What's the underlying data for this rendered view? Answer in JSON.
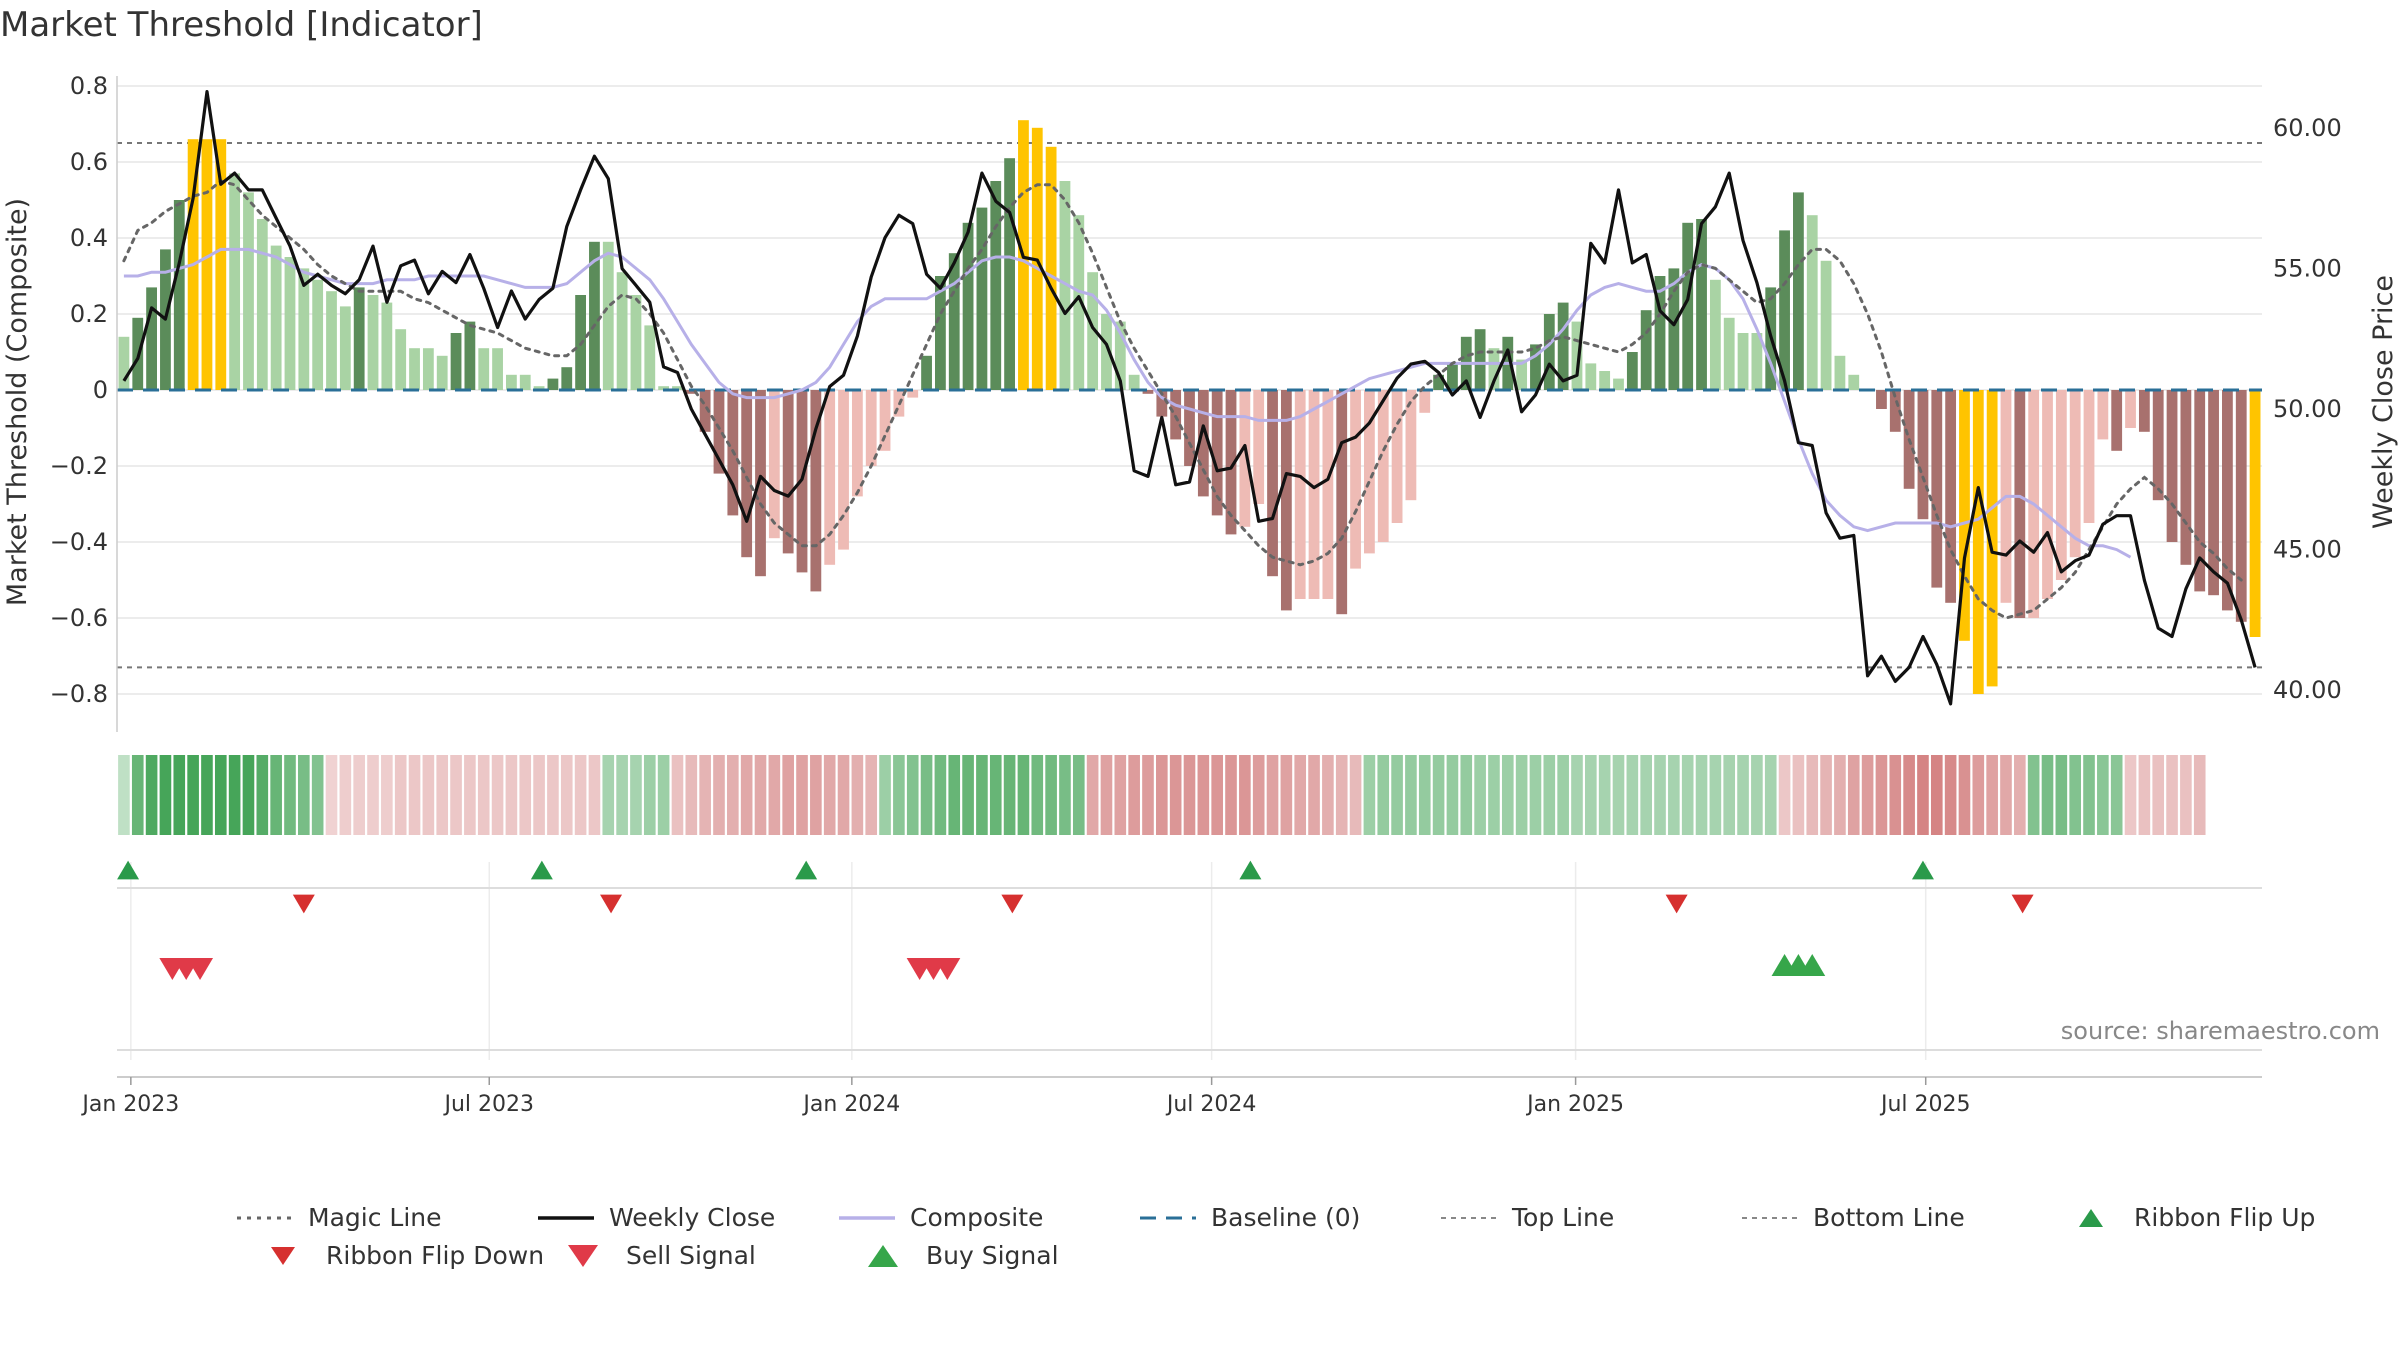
{
  "chart_data": {
    "title": "Market Threshold [Indicator]",
    "type": "bar",
    "y_left": {
      "label": "Market Threshold (Composite)",
      "range": [
        -0.9,
        0.8
      ],
      "ticks": [
        "0.8",
        "0.6",
        "0.4",
        "0.2",
        "0",
        "−0.2",
        "−0.4",
        "−0.6",
        "−0.8"
      ],
      "tick_values": [
        0.8,
        0.6,
        0.4,
        0.2,
        0,
        -0.2,
        -0.4,
        -0.6,
        -0.8
      ]
    },
    "y_right": {
      "label": "Weekly Close Price",
      "range": [
        38.5,
        61.5
      ],
      "ticks": [
        "60.00",
        "55.00",
        "50.00",
        "45.00",
        "40.00"
      ],
      "tick_values": [
        60,
        55,
        50,
        45,
        40
      ]
    },
    "x_axis": {
      "ticks": [
        "Jan 2023",
        "Jul 2023",
        "Jan 2024",
        "Jul 2024",
        "Jan 2025",
        "Jul 2025"
      ],
      "tick_weeks": [
        0.5,
        26.4,
        52.6,
        78.6,
        104.9,
        130.2
      ],
      "weeks": 143
    },
    "grid": true,
    "legend_placement": "bottom",
    "top_line": 0.65,
    "bottom_line": -0.73,
    "composite_bars": [
      0.14,
      0.19,
      0.27,
      0.37,
      0.5,
      0.66,
      0.66,
      0.66,
      0.57,
      0.52,
      0.45,
      0.38,
      0.35,
      0.32,
      0.29,
      0.26,
      0.22,
      0.27,
      0.25,
      0.23,
      0.16,
      0.11,
      0.11,
      0.09,
      0.15,
      0.18,
      0.11,
      0.11,
      0.04,
      0.04,
      0.01,
      0.03,
      0.06,
      0.25,
      0.39,
      0.39,
      0.31,
      0.25,
      0.17,
      0.01,
      0.01,
      -0.01,
      -0.11,
      -0.22,
      -0.33,
      -0.44,
      -0.49,
      -0.39,
      -0.43,
      -0.48,
      -0.53,
      -0.46,
      -0.42,
      -0.28,
      -0.2,
      -0.16,
      -0.07,
      -0.02,
      0.09,
      0.3,
      0.36,
      0.44,
      0.48,
      0.55,
      0.61,
      0.71,
      0.69,
      0.64,
      0.55,
      0.46,
      0.31,
      0.2,
      0.18,
      0.04,
      -0.01,
      -0.07,
      -0.13,
      -0.2,
      -0.28,
      -0.33,
      -0.38,
      -0.36,
      -0.3,
      -0.49,
      -0.58,
      -0.55,
      -0.55,
      -0.55,
      -0.59,
      -0.47,
      -0.43,
      -0.4,
      -0.35,
      -0.29,
      -0.06,
      0.04,
      0.07,
      0.14,
      0.16,
      0.11,
      0.14,
      0.08,
      0.12,
      0.2,
      0.23,
      0.18,
      0.07,
      0.05,
      0.03,
      0.1,
      0.21,
      0.3,
      0.32,
      0.44,
      0.45,
      0.29,
      0.19,
      0.15,
      0.15,
      0.27,
      0.42,
      0.52,
      0.46,
      0.34,
      0.09,
      0.04,
      0.0,
      -0.05,
      -0.11,
      -0.26,
      -0.34,
      -0.52,
      -0.56,
      -0.66,
      -0.8,
      -0.78,
      -0.56,
      -0.6,
      -0.6,
      -0.55,
      -0.5,
      -0.44,
      -0.35,
      -0.13,
      -0.16,
      -0.1,
      -0.11,
      -0.29,
      -0.4,
      -0.46,
      -0.53,
      -0.54,
      -0.58,
      -0.61,
      -0.65
    ],
    "weekly_close": [
      51.0,
      51.8,
      53.6,
      53.2,
      55.2,
      57.5,
      61.3,
      58.0,
      58.4,
      57.8,
      57.8,
      56.8,
      55.8,
      54.4,
      54.8,
      54.4,
      54.1,
      54.6,
      55.8,
      53.8,
      55.1,
      55.3,
      54.1,
      54.9,
      54.5,
      55.5,
      54.3,
      52.9,
      54.2,
      53.2,
      53.9,
      54.3,
      56.5,
      57.8,
      59.0,
      58.2,
      55.0,
      54.4,
      53.8,
      51.5,
      51.3,
      50.0,
      49.1,
      48.2,
      47.3,
      46.0,
      47.6,
      47.1,
      46.9,
      47.5,
      49.3,
      50.8,
      51.2,
      52.6,
      54.7,
      56.1,
      56.9,
      56.6,
      54.8,
      54.3,
      55.2,
      56.3,
      58.4,
      57.4,
      57.0,
      55.4,
      55.3,
      54.3,
      53.4,
      54.0,
      52.9,
      52.3,
      51.0,
      47.8,
      47.6,
      49.7,
      47.3,
      47.4,
      49.4,
      47.8,
      47.9,
      48.7,
      46.0,
      46.1,
      47.7,
      47.6,
      47.2,
      47.5,
      48.8,
      49.0,
      49.5,
      50.3,
      51.1,
      51.6,
      51.7,
      51.3,
      50.5,
      51.0,
      49.7,
      51.0,
      52.1,
      49.9,
      50.5,
      51.6,
      51.0,
      51.2,
      55.9,
      55.2,
      57.8,
      55.2,
      55.5,
      53.5,
      53.0,
      53.9,
      56.6,
      57.2,
      58.4,
      56.0,
      54.5,
      52.6,
      51.0,
      48.8,
      48.7,
      46.3,
      45.4,
      45.5,
      40.5,
      41.2,
      40.3,
      40.8,
      41.9,
      40.9,
      39.5,
      44.7,
      47.2,
      44.9,
      44.8,
      45.3,
      44.9,
      45.6,
      44.2,
      44.6,
      44.8,
      45.9,
      46.2,
      46.2,
      43.9,
      42.2,
      41.9,
      43.6,
      44.7,
      44.2,
      43.8,
      42.5,
      40.8
    ],
    "magic_line": [
      0.34,
      0.42,
      0.44,
      0.47,
      0.49,
      0.51,
      0.52,
      0.55,
      0.54,
      0.5,
      0.46,
      0.43,
      0.4,
      0.37,
      0.33,
      0.3,
      0.28,
      0.26,
      0.26,
      0.26,
      0.26,
      0.24,
      0.23,
      0.21,
      0.19,
      0.17,
      0.16,
      0.15,
      0.13,
      0.11,
      0.1,
      0.09,
      0.09,
      0.12,
      0.17,
      0.22,
      0.25,
      0.24,
      0.2,
      0.15,
      0.08,
      0.01,
      -0.04,
      -0.1,
      -0.16,
      -0.23,
      -0.3,
      -0.35,
      -0.38,
      -0.41,
      -0.41,
      -0.38,
      -0.33,
      -0.27,
      -0.2,
      -0.12,
      -0.04,
      0.04,
      0.12,
      0.2,
      0.26,
      0.32,
      0.37,
      0.43,
      0.48,
      0.52,
      0.54,
      0.54,
      0.5,
      0.44,
      0.36,
      0.27,
      0.18,
      0.11,
      0.05,
      -0.01,
      -0.07,
      -0.14,
      -0.21,
      -0.28,
      -0.33,
      -0.37,
      -0.41,
      -0.44,
      -0.45,
      -0.46,
      -0.45,
      -0.43,
      -0.39,
      -0.32,
      -0.24,
      -0.16,
      -0.09,
      -0.03,
      0.01,
      0.04,
      0.07,
      0.09,
      0.1,
      0.1,
      0.1,
      0.1,
      0.11,
      0.13,
      0.14,
      0.13,
      0.12,
      0.11,
      0.1,
      0.12,
      0.15,
      0.2,
      0.26,
      0.31,
      0.33,
      0.32,
      0.29,
      0.26,
      0.23,
      0.24,
      0.28,
      0.33,
      0.37,
      0.37,
      0.34,
      0.28,
      0.2,
      0.1,
      -0.02,
      -0.13,
      -0.23,
      -0.33,
      -0.42,
      -0.49,
      -0.55,
      -0.58,
      -0.6,
      -0.59,
      -0.58,
      -0.55,
      -0.52,
      -0.48,
      -0.42,
      -0.36,
      -0.3,
      -0.26,
      -0.23,
      -0.26,
      -0.3,
      -0.35,
      -0.4,
      -0.43,
      -0.47,
      -0.5
    ],
    "composite_line": [
      0.3,
      0.3,
      0.31,
      0.31,
      0.32,
      0.33,
      0.35,
      0.37,
      0.37,
      0.37,
      0.36,
      0.35,
      0.33,
      0.31,
      0.3,
      0.29,
      0.28,
      0.28,
      0.28,
      0.29,
      0.29,
      0.29,
      0.3,
      0.3,
      0.3,
      0.3,
      0.3,
      0.29,
      0.28,
      0.27,
      0.27,
      0.27,
      0.28,
      0.31,
      0.34,
      0.36,
      0.35,
      0.32,
      0.29,
      0.24,
      0.18,
      0.12,
      0.07,
      0.02,
      -0.01,
      -0.02,
      -0.02,
      -0.02,
      -0.01,
      0.0,
      0.02,
      0.06,
      0.12,
      0.18,
      0.22,
      0.24,
      0.24,
      0.24,
      0.24,
      0.26,
      0.28,
      0.31,
      0.34,
      0.35,
      0.35,
      0.34,
      0.32,
      0.3,
      0.28,
      0.26,
      0.25,
      0.21,
      0.15,
      0.08,
      0.02,
      -0.02,
      -0.04,
      -0.05,
      -0.06,
      -0.07,
      -0.07,
      -0.07,
      -0.08,
      -0.08,
      -0.08,
      -0.07,
      -0.05,
      -0.03,
      -0.01,
      0.01,
      0.03,
      0.04,
      0.05,
      0.06,
      0.07,
      0.07,
      0.07,
      0.07,
      0.07,
      0.07,
      0.07,
      0.07,
      0.09,
      0.12,
      0.16,
      0.21,
      0.25,
      0.27,
      0.28,
      0.27,
      0.26,
      0.26,
      0.28,
      0.31,
      0.33,
      0.32,
      0.29,
      0.24,
      0.16,
      0.07,
      -0.03,
      -0.13,
      -0.22,
      -0.29,
      -0.33,
      -0.36,
      -0.37,
      -0.36,
      -0.35,
      -0.35,
      -0.35,
      -0.35,
      -0.36,
      -0.35,
      -0.34,
      -0.31,
      -0.28,
      -0.28,
      -0.3,
      -0.33,
      -0.36,
      -0.39,
      -0.41,
      -0.41,
      -0.42,
      -0.44
    ],
    "ribbon_strength": [
      0.1,
      0.6,
      0.75,
      0.85,
      0.9,
      0.95,
      0.95,
      0.9,
      0.85,
      0.8,
      0.7,
      0.6,
      0.55,
      0.5,
      0.45,
      -0.1,
      -0.15,
      -0.15,
      -0.15,
      -0.15,
      -0.2,
      -0.2,
      -0.2,
      -0.2,
      -0.2,
      -0.2,
      -0.2,
      -0.2,
      -0.2,
      -0.2,
      -0.2,
      -0.2,
      -0.2,
      -0.2,
      -0.2,
      0.25,
      0.25,
      0.25,
      0.3,
      0.3,
      -0.25,
      -0.3,
      -0.35,
      -0.4,
      -0.4,
      -0.45,
      -0.45,
      -0.45,
      -0.5,
      -0.5,
      -0.5,
      -0.45,
      -0.45,
      -0.4,
      -0.35,
      0.3,
      0.4,
      0.45,
      0.5,
      0.55,
      0.6,
      0.6,
      0.6,
      0.6,
      0.6,
      0.6,
      0.55,
      0.55,
      0.5,
      0.5,
      -0.45,
      -0.5,
      -0.5,
      -0.55,
      -0.55,
      -0.6,
      -0.6,
      -0.6,
      -0.6,
      -0.6,
      -0.6,
      -0.6,
      -0.55,
      -0.5,
      -0.5,
      -0.45,
      -0.45,
      -0.4,
      -0.35,
      -0.3,
      0.3,
      0.35,
      0.35,
      0.35,
      0.35,
      0.35,
      0.35,
      0.35,
      0.3,
      0.3,
      0.3,
      0.3,
      0.3,
      0.3,
      0.3,
      0.25,
      0.25,
      0.25,
      0.25,
      0.25,
      0.25,
      0.25,
      0.25,
      0.25,
      0.25,
      0.25,
      0.25,
      0.25,
      0.25,
      0.25,
      -0.2,
      -0.25,
      -0.3,
      -0.35,
      -0.4,
      -0.5,
      -0.55,
      -0.6,
      -0.65,
      -0.7,
      -0.75,
      -0.75,
      -0.7,
      -0.65,
      -0.55,
      -0.5,
      -0.45,
      -0.4,
      0.45,
      0.5,
      0.5,
      0.45,
      0.45,
      0.4,
      0.4,
      -0.2,
      -0.25,
      -0.25,
      -0.25,
      -0.25,
      -0.3
    ],
    "ribbon_flip_up_weeks": [
      0.3,
      30.2,
      49.3,
      81.4,
      130.0
    ],
    "ribbon_flip_down_weeks": [
      13.0,
      35.2,
      64.2,
      112.2,
      137.2
    ],
    "sell_signal_weeks": [
      3.5,
      4.5,
      5.5,
      57.5,
      58.5,
      59.5
    ],
    "buy_signal_weeks": [
      120.0,
      121.0,
      122.0
    ],
    "legend": [
      "Magic Line",
      "Weekly Close",
      "Composite",
      "Baseline (0)",
      "Top Line",
      "Bottom Line",
      "Ribbon Flip Up",
      "Ribbon Flip Down",
      "Sell Signal",
      "Buy Signal"
    ],
    "source": "source: sharemaestro.com",
    "colors": {
      "strong_pos": "#5b8c5a",
      "weak_pos": "#a9d3a4",
      "strong_neg": "#a8716e",
      "weak_neg": "#eebbb5",
      "extreme": "#ffc400",
      "close": "#111111",
      "composite": "#b7b0e8",
      "magic": "#666666",
      "baseline": "#2a6f97",
      "up": "#2a9a4a",
      "down": "#d6302f",
      "sell": "#e03a48",
      "buy": "#36a64a"
    }
  }
}
